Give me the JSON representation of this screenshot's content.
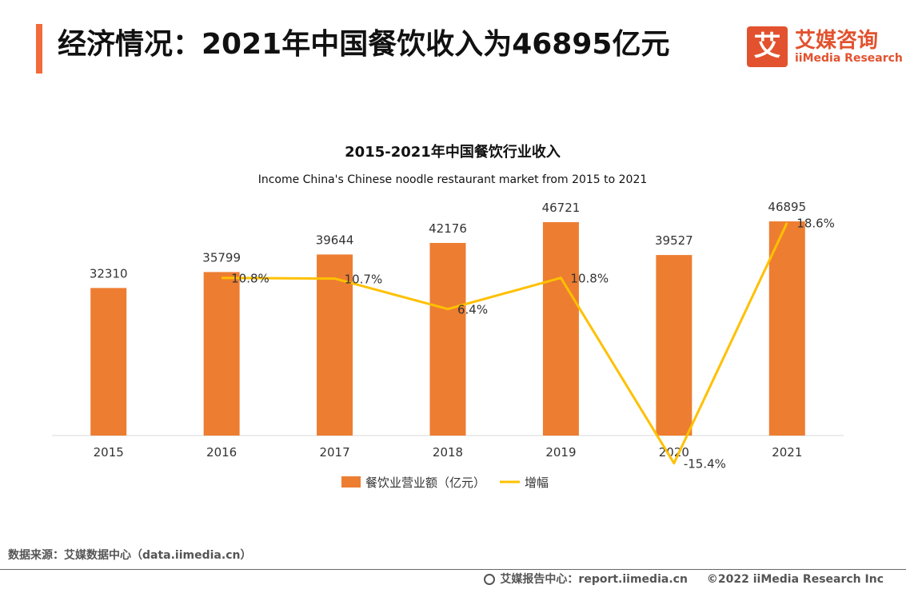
{
  "header": {
    "title": "经济情况：2021年中国餐饮收入为46895亿元"
  },
  "logo": {
    "mark": "艾",
    "cn": "艾媒咨询",
    "en": "iiMedia Research"
  },
  "chart_data": {
    "type": "bar",
    "title": "2015-2021年中国餐饮行业收入",
    "subtitle": "Income China's Chinese noodle restaurant market from 2015 to 2021",
    "categories": [
      "2015",
      "2016",
      "2017",
      "2018",
      "2019",
      "2020",
      "2021"
    ],
    "series": [
      {
        "name": "餐饮业营业额（亿元）",
        "type": "bar",
        "color": "#ED7D31",
        "values": [
          32310,
          35799,
          39644,
          42176,
          46721,
          39527,
          46895
        ],
        "labels": [
          "32310",
          "35799",
          "39644",
          "42176",
          "46721",
          "39527",
          "46895"
        ]
      },
      {
        "name": "增幅",
        "type": "line",
        "color": "#FFC000",
        "values": [
          null,
          10.8,
          10.7,
          6.4,
          10.8,
          -15.4,
          18.6
        ],
        "labels": [
          "",
          "10.8%",
          "10.7%",
          "6.4%",
          "10.8%",
          "-15.4%",
          "18.6%"
        ]
      }
    ],
    "legend_position": "bottom",
    "grid": false
  },
  "footer": {
    "source": "数据来源：艾媒数据中心（data.iimedia.cn）",
    "report_center": "艾媒报告中心：report.iimedia.cn",
    "copyright": "©2022 iiMedia Research Inc"
  }
}
